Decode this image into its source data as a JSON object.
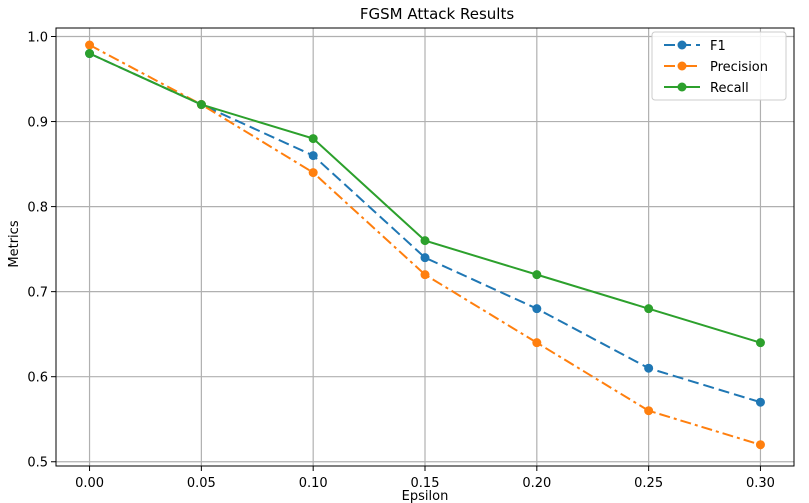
{
  "chart_data": {
    "type": "line",
    "title": "FGSM Attack Results",
    "xlabel": "Epsilon",
    "ylabel": "Metrics",
    "x": [
      0.0,
      0.05,
      0.1,
      0.15,
      0.2,
      0.25,
      0.3
    ],
    "x_tick_labels": [
      "0.00",
      "0.05",
      "0.10",
      "0.15",
      "0.20",
      "0.25",
      "0.30"
    ],
    "y_ticks": [
      0.5,
      0.6,
      0.7,
      0.8,
      0.9,
      1.0
    ],
    "y_tick_labels": [
      "0.5",
      "0.6",
      "0.7",
      "0.8",
      "0.9",
      "1.0"
    ],
    "xlim": [
      -0.015,
      0.315
    ],
    "ylim": [
      0.495,
      1.01
    ],
    "grid": true,
    "legend": "top-right",
    "series": [
      {
        "name": "F1",
        "color": "#1f77b4",
        "dash": "dashed",
        "values": [
          0.98,
          0.92,
          0.86,
          0.74,
          0.68,
          0.61,
          0.57
        ]
      },
      {
        "name": "Precision",
        "color": "#ff7f0e",
        "dash": "dashdot",
        "values": [
          0.99,
          0.92,
          0.84,
          0.72,
          0.64,
          0.56,
          0.52
        ]
      },
      {
        "name": "Recall",
        "color": "#2ca02c",
        "dash": "solid",
        "values": [
          0.98,
          0.92,
          0.88,
          0.76,
          0.72,
          0.68,
          0.64
        ]
      }
    ]
  }
}
